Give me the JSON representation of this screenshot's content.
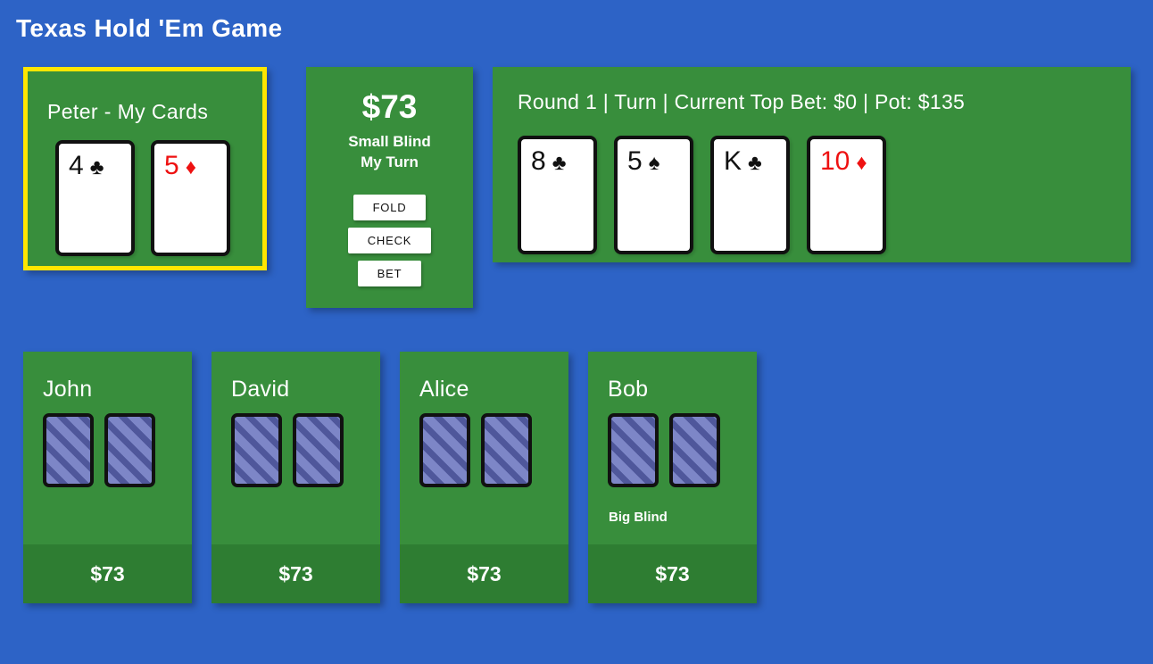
{
  "title": "Texas Hold 'Em Game",
  "colors": {
    "background": "#2d63c6",
    "panel_green": "#388e3c",
    "panel_green_dark": "#2e7d32",
    "highlight_yellow": "#ffe600",
    "suit_red": "#ee1111",
    "suit_black": "#111111",
    "card_back_light": "#7d86c7",
    "card_back_dark": "#4f579b"
  },
  "my_panel": {
    "title": "Peter - My Cards",
    "cards": [
      {
        "rank": "4",
        "suit": "♣",
        "color": "#111111"
      },
      {
        "rank": "5",
        "suit": "♦",
        "color": "#ee1111"
      }
    ]
  },
  "action_panel": {
    "chips": "$73",
    "role": "Small Blind",
    "turn": "My Turn",
    "buttons": {
      "fold": "FOLD",
      "check": "CHECK",
      "bet": "BET"
    }
  },
  "round_panel": {
    "info": "Round 1 | Turn | Current Top Bet: $0 | Pot: $135",
    "cards": [
      {
        "rank": "8",
        "suit": "♣",
        "color": "#111111"
      },
      {
        "rank": "5",
        "suit": "♠",
        "color": "#111111"
      },
      {
        "rank": "K",
        "suit": "♣",
        "color": "#111111"
      },
      {
        "rank": "10",
        "suit": "♦",
        "color": "#ee1111"
      }
    ]
  },
  "opponents": [
    {
      "name": "John",
      "badge": "",
      "chips": "$73"
    },
    {
      "name": "David",
      "badge": "",
      "chips": "$73"
    },
    {
      "name": "Alice",
      "badge": "",
      "chips": "$73"
    },
    {
      "name": "Bob",
      "badge": "Big Blind",
      "chips": "$73"
    }
  ]
}
